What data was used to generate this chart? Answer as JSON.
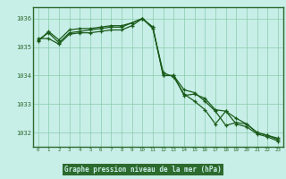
{
  "title": "Graphe pression niveau de la mer (hPa)",
  "bg_color": "#c8eee8",
  "plot_bg_color": "#c8eee8",
  "border_color": "#2d6a2d",
  "title_bar_color": "#2d6a2d",
  "title_text_color": "#c8eee8",
  "grid_color": "#88ccaa",
  "line_color": "#1a5c1a",
  "ylim": [
    1031.5,
    1036.4
  ],
  "xlim": [
    -0.5,
    23.5
  ],
  "yticks": [
    1032,
    1033,
    1034,
    1035,
    1036
  ],
  "xticks": [
    0,
    1,
    2,
    3,
    4,
    5,
    6,
    7,
    8,
    9,
    10,
    11,
    12,
    13,
    14,
    15,
    16,
    17,
    18,
    19,
    20,
    21,
    22,
    23
  ],
  "series1": [
    1035.2,
    1035.55,
    1035.25,
    1035.6,
    1035.65,
    1035.65,
    1035.7,
    1035.75,
    1035.75,
    1035.85,
    1036.0,
    1035.7,
    1034.0,
    1034.0,
    1033.3,
    1033.35,
    1033.2,
    1032.8,
    1032.75,
    1032.5,
    1032.3,
    1032.0,
    1031.9,
    1031.8
  ],
  "series2": [
    1035.25,
    1035.5,
    1035.15,
    1035.5,
    1035.55,
    1035.6,
    1035.65,
    1035.7,
    1035.7,
    1035.85,
    1036.0,
    1035.7,
    1034.0,
    1034.0,
    1033.5,
    1033.4,
    1033.1,
    1032.75,
    1032.25,
    1032.35,
    1032.3,
    1032.0,
    1031.9,
    1031.75
  ],
  "series3": [
    1035.3,
    1035.3,
    1035.1,
    1035.45,
    1035.5,
    1035.5,
    1035.55,
    1035.6,
    1035.6,
    1035.75,
    1036.0,
    1035.65,
    1034.1,
    1033.95,
    1033.35,
    1033.1,
    1032.8,
    1032.3,
    1032.75,
    1032.3,
    1032.2,
    1031.95,
    1031.85,
    1031.7
  ]
}
